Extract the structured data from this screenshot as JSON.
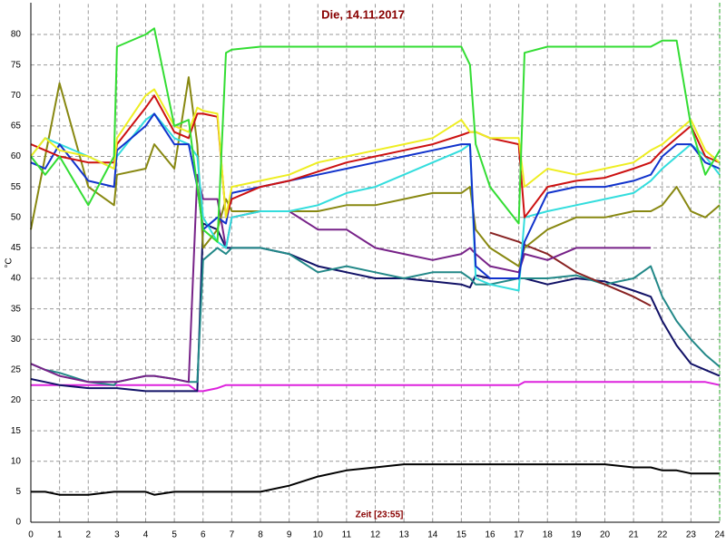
{
  "chart_data": {
    "type": "line",
    "title": "Die, 14.11.2017",
    "xlabel": "Zeit [23:55]",
    "ylabel": "°C",
    "x": [
      0,
      0.5,
      1,
      2,
      2.9,
      3,
      4,
      4.3,
      5,
      5.5,
      5.8,
      6,
      6.5,
      6.8,
      7,
      8,
      9,
      10,
      11,
      12,
      13,
      14,
      15,
      15.3,
      15.5,
      16,
      17,
      17.2,
      18,
      19,
      20,
      21,
      21.6,
      22,
      22.5,
      23,
      23.5,
      24
    ],
    "xlim": [
      0,
      24
    ],
    "xticks": [
      0,
      1,
      2,
      3,
      4,
      5,
      6,
      7,
      8,
      9,
      10,
      11,
      12,
      13,
      14,
      15,
      16,
      17,
      18,
      19,
      20,
      21,
      22,
      23,
      24
    ],
    "ylim": [
      0,
      85
    ],
    "yticks": [
      0,
      5,
      10,
      15,
      20,
      25,
      30,
      35,
      40,
      45,
      50,
      55,
      60,
      65,
      70,
      75,
      80
    ],
    "grid": true,
    "series": [
      {
        "color": "#000000",
        "values": [
          5,
          5,
          4.5,
          4.5,
          5,
          5,
          5,
          4.5,
          5,
          5,
          5,
          5,
          5,
          5,
          5,
          5,
          6,
          7.5,
          8.5,
          9,
          9.5,
          9.5,
          9.5,
          9.5,
          9.5,
          9.5,
          9.5,
          9.5,
          9.5,
          9.5,
          9.5,
          9,
          9,
          8.5,
          8.5,
          8,
          8,
          8
        ]
      },
      {
        "color": "#dd22dd",
        "values": [
          22.5,
          22.5,
          22.5,
          22.5,
          22.5,
          22.5,
          22.5,
          22.5,
          22.5,
          22.5,
          21.5,
          21.5,
          22,
          22.5,
          22.5,
          22.5,
          22.5,
          22.5,
          22.5,
          22.5,
          22.5,
          22.5,
          22.5,
          22.5,
          22.5,
          22.5,
          22.5,
          23,
          23,
          23,
          23,
          23,
          23,
          23,
          23,
          23,
          23,
          22.5
        ]
      },
      {
        "color": "#111166",
        "values": [
          23.5,
          23,
          22.5,
          22,
          22,
          22,
          21.5,
          21.5,
          21.5,
          21.5,
          21.5,
          49,
          48,
          45,
          45,
          45,
          44,
          42,
          41,
          40,
          40,
          39.5,
          39,
          38.5,
          40.5,
          40,
          40,
          40,
          39,
          40,
          39.5,
          38,
          37,
          33,
          29,
          26,
          25,
          24
        ]
      },
      {
        "color": "#228888",
        "values": [
          26,
          25,
          24.5,
          23,
          22.5,
          23,
          24,
          24,
          23.5,
          23,
          23,
          43,
          45,
          44,
          45,
          45,
          44,
          41,
          42,
          41,
          40,
          41,
          41,
          40,
          39,
          39,
          40,
          40,
          40,
          40.5,
          39,
          40,
          42,
          37,
          33,
          30,
          27.5,
          25.5
        ]
      },
      {
        "color": "#882222",
        "values": [
          null,
          null,
          null,
          null,
          null,
          null,
          null,
          null,
          null,
          null,
          null,
          null,
          null,
          null,
          null,
          null,
          null,
          null,
          null,
          null,
          null,
          null,
          null,
          null,
          null,
          47.5,
          46,
          45.5,
          44,
          41,
          39,
          37,
          35.5,
          null,
          null,
          null,
          null,
          null
        ]
      },
      {
        "color": "#772288",
        "values": [
          26,
          25,
          24,
          23,
          23,
          23,
          24,
          24,
          23.5,
          23,
          57,
          53,
          53,
          45,
          50,
          51,
          51,
          48,
          48,
          45,
          44,
          43,
          44,
          45,
          44,
          42,
          41,
          44,
          43,
          45,
          45,
          45,
          45,
          null,
          null,
          null,
          null,
          null
        ]
      },
      {
        "color": "#888811",
        "values": [
          48,
          60,
          72,
          55,
          52,
          57,
          58,
          62,
          58,
          73,
          62,
          45,
          48,
          53,
          51,
          51,
          51,
          51,
          52,
          52,
          53,
          54,
          54,
          55,
          48,
          45,
          42,
          45,
          48,
          50,
          50,
          51,
          51,
          52,
          55,
          51,
          50,
          52
        ]
      },
      {
        "color": "#33dddd",
        "values": [
          60,
          63,
          62,
          60,
          58,
          60,
          66,
          67,
          63,
          62,
          60,
          50,
          46,
          45,
          50,
          51,
          51,
          52,
          54,
          55,
          57,
          59,
          61,
          62,
          40,
          39,
          38,
          50,
          51,
          52,
          53,
          54,
          56,
          58,
          60,
          62,
          60,
          57
        ]
      },
      {
        "color": "#1133cc",
        "values": [
          59,
          58,
          62,
          56,
          55,
          61,
          65,
          67,
          62,
          62,
          55,
          48,
          50,
          49,
          54,
          55,
          56,
          57,
          58,
          59,
          60,
          61,
          62,
          62,
          42,
          40,
          40,
          46,
          54,
          55,
          55,
          56,
          57,
          60,
          62,
          62,
          59,
          58
        ]
      },
      {
        "color": "#cc1111",
        "values": [
          62,
          61,
          60,
          59,
          59,
          62,
          68,
          70,
          64,
          63,
          67,
          67,
          66.5,
          50,
          53,
          55,
          56,
          57.5,
          59,
          60,
          61,
          62,
          63.5,
          64,
          64,
          63,
          62,
          50,
          55,
          56,
          56.5,
          58,
          59,
          61,
          63,
          65,
          60,
          59
        ]
      },
      {
        "color": "#eeee22",
        "values": [
          60,
          63,
          61,
          60,
          58,
          63,
          70,
          71,
          65,
          64,
          68,
          67.5,
          67,
          50,
          55,
          56,
          57,
          59,
          60,
          61,
          62,
          63,
          66,
          64,
          64,
          63,
          63,
          55,
          58,
          57,
          58,
          59,
          61,
          62,
          64,
          66,
          61,
          59
        ]
      },
      {
        "color": "#33dd33",
        "values": [
          60,
          57,
          60,
          52,
          60,
          78,
          80,
          81,
          65,
          66,
          55,
          48,
          46,
          77,
          77.5,
          78,
          78,
          78,
          78,
          78,
          78,
          78,
          78,
          75,
          62,
          55,
          49,
          77,
          78,
          78,
          78,
          78,
          78,
          79,
          79,
          65,
          57,
          61
        ]
      }
    ]
  }
}
